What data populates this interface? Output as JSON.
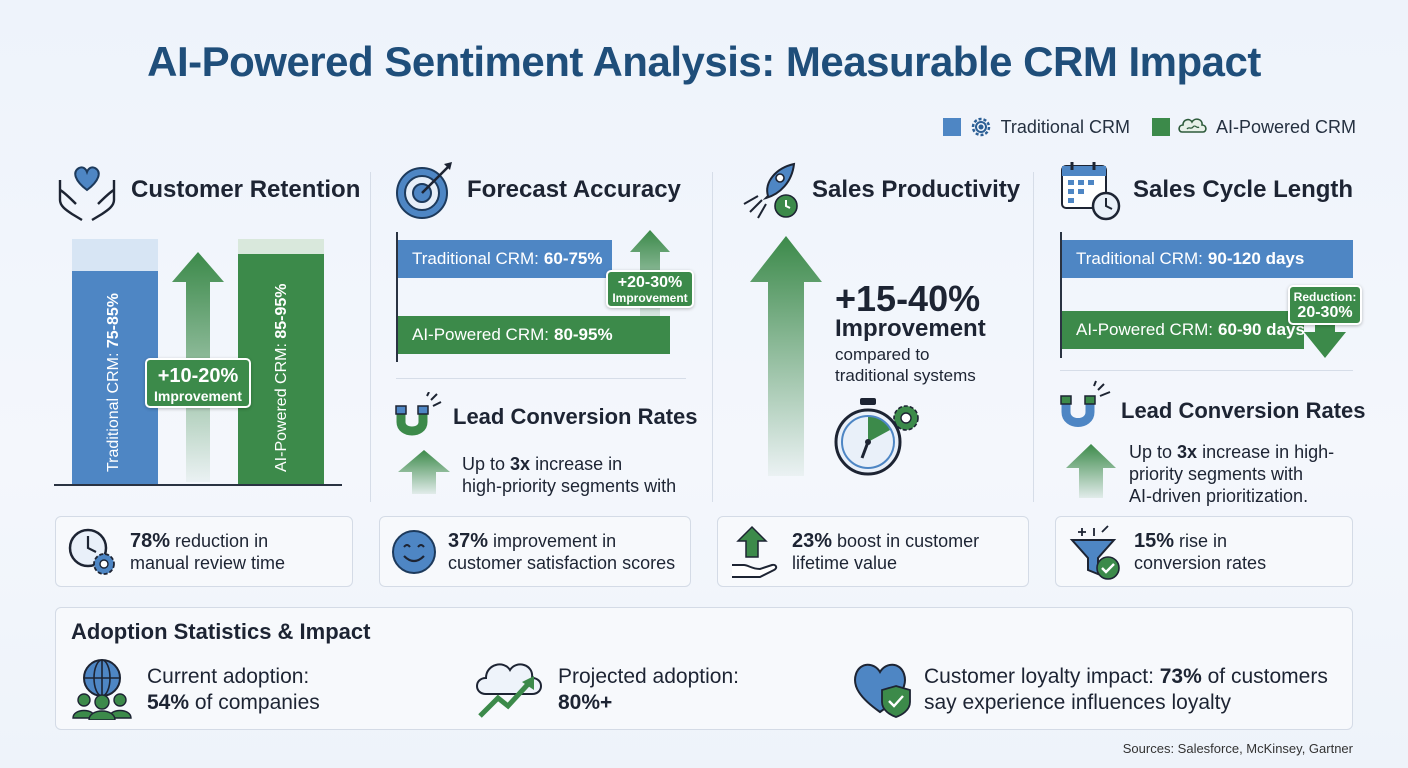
{
  "header": {
    "title": "AI-Powered Sentiment Analysis: Measurable CRM Impact"
  },
  "legend": {
    "traditional": {
      "label": "Traditional CRM",
      "color": "#4e86c4",
      "icon": "gear-icon"
    },
    "ai": {
      "label": "AI-Powered CRM",
      "color": "#3c8a4a",
      "icon": "brain-icon"
    }
  },
  "retention": {
    "title": "Customer Retention",
    "traditional_label": "Traditional CRM: ",
    "traditional_value": "75-85%",
    "ai_label": "AI-Powered CRM: ",
    "ai_value": "85-95%",
    "badge_value": "+10-20%",
    "badge_label": "Improvement"
  },
  "forecast": {
    "title": "Forecast Accuracy",
    "traditional_label": "Traditional CRM:",
    "traditional_value": "60-75%",
    "ai_label": "AI-Powered CRM:",
    "ai_value": "80-95%",
    "badge_value": "+20-30%",
    "badge_label": "Improvement"
  },
  "lead_conv_left": {
    "title": "Lead Conversion Rates",
    "pre": "Up to ",
    "bold": "3x",
    "post": " increase in",
    "line2": "high-priority segments with"
  },
  "productivity": {
    "title": "Sales Productivity",
    "value": "+15-40%",
    "label": "Improvement",
    "line1": "compared to",
    "line2": "traditional systems"
  },
  "cycle": {
    "title": "Sales Cycle Length",
    "traditional_label": "Traditional CRM:",
    "traditional_value": "90-120 days",
    "ai_label": "AI-Powered CRM:",
    "ai_value": "60-90 days",
    "badge_label": "Reduction:",
    "badge_value": "20-30%"
  },
  "lead_conv_right": {
    "title": "Lead Conversion Rates",
    "pre": "Up to ",
    "bold": "3x",
    "post": " increase in high-",
    "line2": "priority segments with",
    "line3": "AI-driven prioritization."
  },
  "cards": [
    {
      "bold": "78%",
      "text1": " reduction in",
      "text2": "manual review time",
      "icon": "clock-gear-icon"
    },
    {
      "bold": "37%",
      "text1": " improvement in",
      "text2": "customer satisfaction scores",
      "icon": "smiley-icon"
    },
    {
      "bold": "23%",
      "text1": " boost in customer",
      "text2": "lifetime value",
      "icon": "hand-arrow-icon"
    },
    {
      "bold": "15%",
      "text1": " rise in",
      "text2": "conversion rates",
      "icon": "funnel-check-icon"
    }
  ],
  "adoption": {
    "title": "Adoption Statistics & Impact",
    "current_label": "Current adoption:",
    "current_bold": "54%",
    "current_post": " of companies",
    "projected_label": "Projected adoption:",
    "projected_bold": "80%+",
    "loyalty_pre": "Customer loyalty impact: ",
    "loyalty_bold": "73%",
    "loyalty_post": " of customers",
    "loyalty_line2": "say experience influences loyalty"
  },
  "sources": "Sources: Salesforce, McKinsey, Gartner"
}
